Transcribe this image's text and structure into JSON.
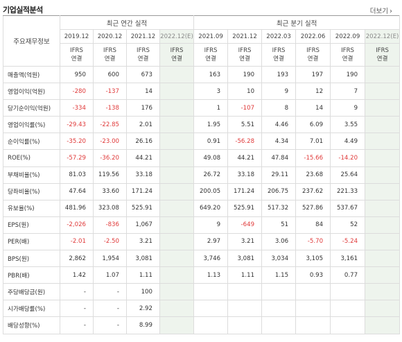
{
  "title": "기업실적분석",
  "more_label": "더보기",
  "more_arrow": "›",
  "header": {
    "row_label": "주요재무정보",
    "annual_group": "최근 연간 실적",
    "quarter_group": "최근 분기 실적",
    "periods": [
      "2019.12",
      "2020.12",
      "2021.12",
      "2022.12(E)",
      "2021.09",
      "2021.12",
      "2022.03",
      "2022.06",
      "2022.09",
      "2022.12(E)"
    ],
    "ifrs_top": "IFRS",
    "ifrs_bottom": "연결"
  },
  "rows": [
    {
      "label": "매출액(억원)",
      "values": [
        "950",
        "600",
        "673",
        "",
        "163",
        "190",
        "193",
        "197",
        "190",
        ""
      ]
    },
    {
      "label": "영업이익(억원)",
      "values": [
        "-280",
        "-137",
        "14",
        "",
        "3",
        "10",
        "9",
        "12",
        "7",
        ""
      ]
    },
    {
      "label": "당기순이익(억원)",
      "values": [
        "-334",
        "-138",
        "176",
        "",
        "1",
        "-107",
        "8",
        "14",
        "9",
        ""
      ]
    },
    {
      "label": "영업이익률(%)",
      "values": [
        "-29.43",
        "-22.85",
        "2.01",
        "",
        "1.95",
        "5.51",
        "4.46",
        "6.09",
        "3.55",
        ""
      ]
    },
    {
      "label": "순이익률(%)",
      "values": [
        "-35.20",
        "-23.00",
        "26.16",
        "",
        "0.91",
        "-56.28",
        "4.34",
        "7.01",
        "4.49",
        ""
      ]
    },
    {
      "label": "ROE(%)",
      "values": [
        "-57.29",
        "-36.20",
        "44.21",
        "",
        "49.08",
        "44.21",
        "47.84",
        "-15.66",
        "-14.20",
        ""
      ]
    },
    {
      "label": "부채비율(%)",
      "values": [
        "81.03",
        "119.56",
        "33.18",
        "",
        "26.72",
        "33.18",
        "29.11",
        "23.68",
        "25.64",
        ""
      ]
    },
    {
      "label": "당좌비율(%)",
      "values": [
        "47.64",
        "33.60",
        "171.24",
        "",
        "200.05",
        "171.24",
        "206.75",
        "237.62",
        "221.33",
        ""
      ]
    },
    {
      "label": "유보율(%)",
      "values": [
        "481.96",
        "323.08",
        "525.91",
        "",
        "649.20",
        "525.91",
        "517.32",
        "527.86",
        "537.67",
        ""
      ]
    },
    {
      "label": "EPS(원)",
      "values": [
        "-2,026",
        "-836",
        "1,067",
        "",
        "9",
        "-649",
        "51",
        "84",
        "52",
        ""
      ]
    },
    {
      "label": "PER(배)",
      "values": [
        "-2.01",
        "-2.50",
        "3.21",
        "",
        "2.97",
        "3.21",
        "3.06",
        "-5.70",
        "-5.24",
        ""
      ]
    },
    {
      "label": "BPS(원)",
      "values": [
        "2,862",
        "1,954",
        "3,081",
        "",
        "3,746",
        "3,081",
        "3,034",
        "3,105",
        "3,161",
        ""
      ]
    },
    {
      "label": "PBR(배)",
      "values": [
        "1.42",
        "1.07",
        "1.11",
        "",
        "1.13",
        "1.11",
        "1.15",
        "0.93",
        "0.77",
        ""
      ]
    },
    {
      "label": "주당배당금(원)",
      "values": [
        "-",
        "-",
        "100",
        "",
        "",
        "",
        "",
        "",
        "",
        ""
      ]
    },
    {
      "label": "시가배당률(%)",
      "values": [
        "-",
        "-",
        "2.92",
        "",
        "",
        "",
        "",
        "",
        "",
        ""
      ]
    },
    {
      "label": "배당성향(%)",
      "values": [
        "-",
        "-",
        "8.99",
        "",
        "",
        "",
        "",
        "",
        "",
        ""
      ]
    }
  ],
  "colors": {
    "negative": "#e03a3a",
    "ifrs": "#e8541e",
    "estimate_bg": "#eef4ed"
  }
}
